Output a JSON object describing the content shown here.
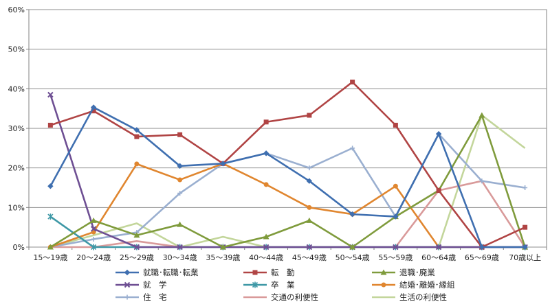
{
  "chart_data": {
    "type": "line",
    "title": "",
    "xlabel": "",
    "ylabel": "",
    "ylim": [
      0,
      60
    ],
    "yticks": [
      "0%",
      "10%",
      "20%",
      "30%",
      "40%",
      "50%",
      "60%"
    ],
    "ytick_values": [
      0,
      10,
      20,
      30,
      40,
      50,
      60
    ],
    "grid": true,
    "legend_position": "bottom",
    "categories": [
      "15～19歳",
      "20～24歳",
      "25～29歳",
      "30～34歳",
      "35～39歳",
      "40～44歳",
      "45～49歳",
      "50～54歳",
      "55～59歳",
      "60～64歳",
      "65～69歳",
      "70歳以上"
    ],
    "series": [
      {
        "name": "就職･転職･転業",
        "color": "#3F6FB0",
        "marker": "diamond",
        "values": [
          15.4,
          35.3,
          29.6,
          20.5,
          21.1,
          23.7,
          16.7,
          8.3,
          7.7,
          28.6,
          0,
          0
        ]
      },
      {
        "name": "転　勤",
        "color": "#B04444",
        "marker": "square",
        "values": [
          30.8,
          34.4,
          27.9,
          28.4,
          21.1,
          31.6,
          33.3,
          41.7,
          30.8,
          14.3,
          0,
          5.0
        ]
      },
      {
        "name": "退職･廃業",
        "color": "#7F9B3C",
        "marker": "triangle",
        "values": [
          0,
          6.7,
          3.0,
          5.7,
          0,
          2.6,
          6.7,
          0,
          7.7,
          14.3,
          33.3,
          0
        ]
      },
      {
        "name": "就　学",
        "color": "#6E4F93",
        "marker": "x",
        "values": [
          38.5,
          4.6,
          0,
          0,
          0,
          0,
          0,
          0,
          0,
          0,
          0,
          0
        ]
      },
      {
        "name": "卒　業",
        "color": "#3E98A6",
        "marker": "star",
        "values": [
          7.7,
          0,
          0,
          0,
          0,
          0,
          0,
          0,
          0,
          0,
          0,
          0
        ]
      },
      {
        "name": "結婚･離婚･縁組",
        "color": "#E0862F",
        "marker": "circle",
        "values": [
          0,
          3.8,
          21.0,
          17.0,
          21.1,
          15.8,
          10.0,
          8.3,
          15.4,
          0,
          0,
          0
        ]
      },
      {
        "name": "住　宅",
        "color": "#9AAFD0",
        "marker": "plus",
        "values": [
          0,
          2.0,
          3.7,
          13.6,
          21.1,
          23.7,
          20.0,
          25.0,
          7.7,
          28.6,
          16.7,
          15.0
        ]
      },
      {
        "name": "交通の利便性",
        "color": "#D99A9A",
        "marker": "none",
        "values": [
          0,
          0,
          1.5,
          0,
          0,
          0,
          0,
          0,
          0,
          14.3,
          16.7,
          0
        ]
      },
      {
        "name": "生活の利便性",
        "color": "#C3D69B",
        "marker": "none",
        "values": [
          0,
          3.0,
          6.0,
          0,
          2.6,
          0,
          0,
          0,
          0,
          0,
          33.3,
          25.0
        ]
      }
    ]
  }
}
